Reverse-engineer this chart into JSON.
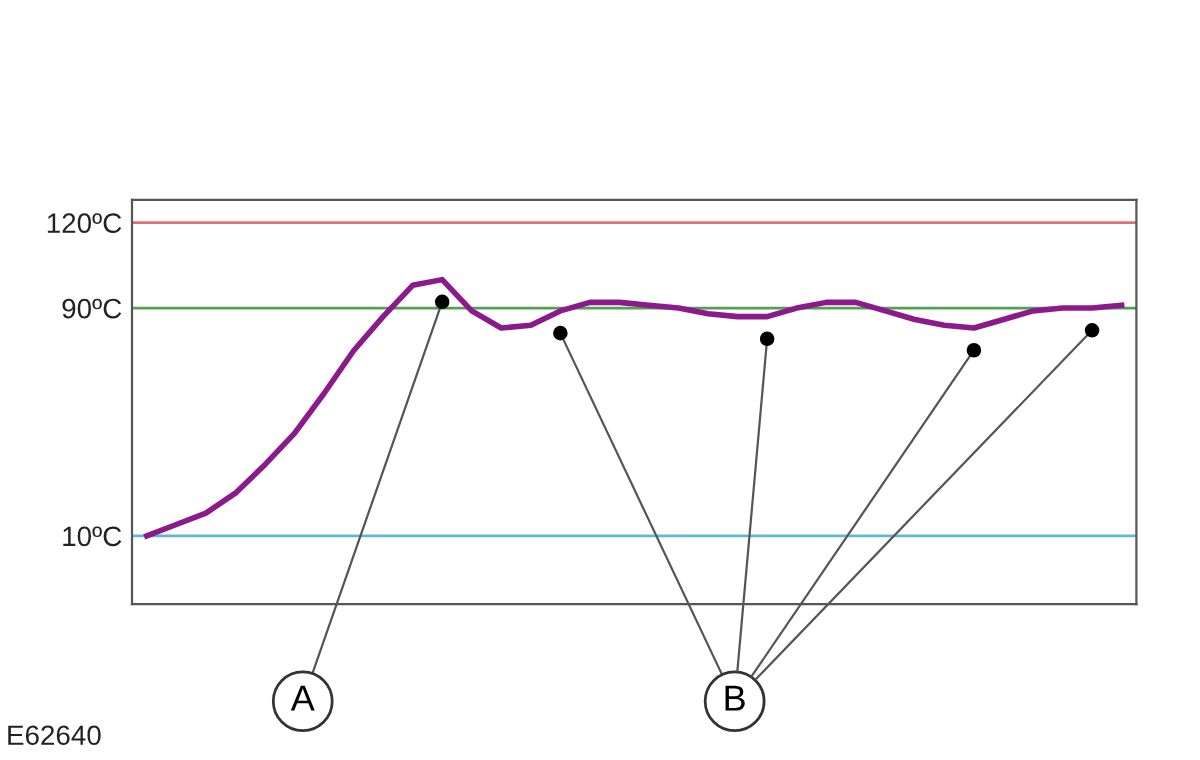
{
  "chart_data": {
    "type": "line",
    "categories": [
      null,
      null,
      null,
      null,
      null,
      null,
      null,
      null,
      null,
      null,
      null,
      null,
      null,
      null,
      null,
      null,
      null,
      null,
      null,
      null,
      null,
      null,
      null,
      null,
      null,
      null,
      null,
      null,
      null,
      null,
      null,
      null,
      null,
      null
    ],
    "series": [
      {
        "color": "#8b1a8b",
        "values": [
          10,
          14,
          18,
          25,
          35,
          46,
          60,
          75,
          87,
          98,
          100,
          89,
          83,
          84,
          89,
          92,
          92,
          91,
          90,
          88,
          87,
          87,
          90,
          92,
          92,
          89,
          86,
          84,
          83,
          86,
          89,
          90,
          90,
          91
        ]
      }
    ],
    "ylim": [
      -14,
      128
    ],
    "yticks": [
      {
        "value": 10,
        "label": "10ºC"
      },
      {
        "value": 90,
        "label": "90ºC"
      },
      {
        "value": 120,
        "label": "120ºC"
      }
    ],
    "grid": false,
    "tick_labels": "y",
    "ref_lines": [
      {
        "axis": "y",
        "value": 120,
        "color": "#e07070"
      },
      {
        "axis": "y",
        "value": 90,
        "color": "#55a055"
      },
      {
        "axis": "y",
        "value": 10,
        "color": "#60b8d8"
      }
    ],
    "annotations": [
      "A",
      "B",
      "E62640"
    ]
  }
}
